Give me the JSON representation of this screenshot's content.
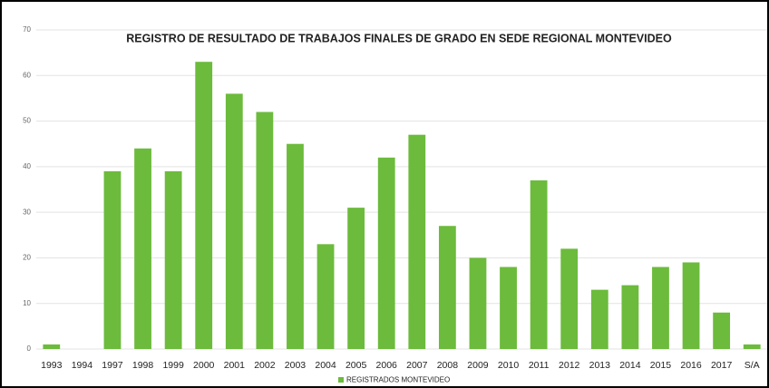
{
  "chart_data": {
    "type": "bar",
    "title": "REGISTRO DE RESULTADO DE TRABAJOS FINALES DE GRADO EN SEDE REGIONAL MONTEVIDEO",
    "categories": [
      "1993",
      "1994",
      "1997",
      "1998",
      "1999",
      "2000",
      "2001",
      "2002",
      "2003",
      "2004",
      "2005",
      "2006",
      "2007",
      "2008",
      "2009",
      "2010",
      "2011",
      "2012",
      "2013",
      "2014",
      "2015",
      "2016",
      "2017",
      "S/A"
    ],
    "series": [
      {
        "name": "REGISTRADOS MONTEVIDEO",
        "color": "#6cbb3c",
        "values": [
          1,
          0,
          39,
          44,
          39,
          63,
          56,
          52,
          45,
          23,
          31,
          42,
          47,
          27,
          20,
          18,
          37,
          22,
          13,
          14,
          18,
          19,
          8,
          1
        ]
      }
    ],
    "ylim": [
      0,
      70
    ],
    "yticks": [
      0,
      10,
      20,
      30,
      40,
      50,
      60,
      70
    ],
    "grid": true,
    "legend": "bottom"
  }
}
